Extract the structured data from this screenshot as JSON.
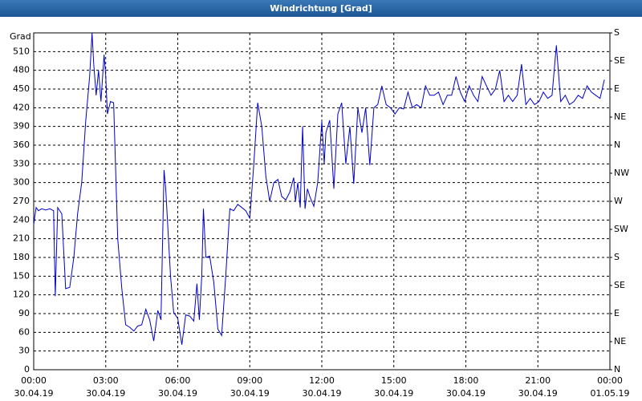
{
  "chart_data": {
    "type": "line",
    "title": "Windrichtung [Grad]",
    "y_label": "Grad",
    "x": [
      0,
      0.1,
      0.2,
      0.33,
      0.5,
      0.67,
      0.83,
      0.9,
      1.0,
      1.17,
      1.33,
      1.5,
      1.67,
      1.83,
      2.0,
      2.17,
      2.33,
      2.43,
      2.5,
      2.6,
      2.7,
      2.8,
      2.93,
      3.0,
      3.07,
      3.2,
      3.33,
      3.5,
      3.67,
      3.83,
      4.0,
      4.17,
      4.33,
      4.5,
      4.67,
      4.83,
      5.0,
      5.17,
      5.3,
      5.43,
      5.5,
      5.6,
      5.7,
      5.83,
      6.0,
      6.17,
      6.33,
      6.5,
      6.67,
      6.8,
      6.9,
      7.0,
      7.07,
      7.17,
      7.33,
      7.5,
      7.67,
      7.83,
      8.0,
      8.17,
      8.33,
      8.5,
      8.67,
      8.83,
      9.0,
      9.17,
      9.33,
      9.5,
      9.67,
      9.83,
      10.0,
      10.17,
      10.33,
      10.5,
      10.67,
      10.83,
      10.9,
      11.0,
      11.1,
      11.2,
      11.3,
      11.4,
      11.5,
      11.67,
      11.83,
      12.0,
      12.1,
      12.17,
      12.33,
      12.5,
      12.67,
      12.83,
      13.0,
      13.17,
      13.33,
      13.5,
      13.67,
      13.83,
      14.0,
      14.17,
      14.33,
      14.5,
      14.68,
      14.86,
      15.05,
      15.23,
      15.41,
      15.59,
      15.77,
      15.95,
      16.14,
      16.32,
      16.5,
      16.68,
      16.86,
      17.05,
      17.23,
      17.41,
      17.59,
      17.77,
      17.95,
      18.14,
      18.32,
      18.5,
      18.68,
      18.86,
      19.05,
      19.23,
      19.41,
      19.59,
      19.77,
      19.95,
      20.14,
      20.32,
      20.5,
      20.68,
      20.86,
      21.05,
      21.23,
      21.41,
      21.59,
      21.77,
      21.95,
      22.14,
      22.32,
      22.5,
      22.68,
      22.86,
      23.05,
      23.23,
      23.41,
      23.59,
      23.77
    ],
    "series": [
      {
        "name": "Windrichtung",
        "color": "#0000cc",
        "values": [
          233,
          260,
          255,
          258,
          256,
          258,
          255,
          118,
          260,
          250,
          130,
          132,
          180,
          250,
          300,
          400,
          470,
          540,
          490,
          440,
          480,
          430,
          505,
          470,
          410,
          430,
          428,
          210,
          130,
          72,
          68,
          62,
          70,
          72,
          97,
          80,
          46,
          95,
          80,
          320,
          290,
          220,
          150,
          92,
          82,
          40,
          88,
          86,
          78,
          138,
          80,
          150,
          258,
          180,
          182,
          140,
          65,
          55,
          150,
          258,
          255,
          265,
          260,
          255,
          243,
          330,
          428,
          390,
          310,
          270,
          300,
          305,
          278,
          272,
          285,
          308,
          270,
          300,
          260,
          390,
          258,
          290,
          278,
          262,
          300,
          398,
          330,
          380,
          400,
          290,
          410,
          428,
          330,
          390,
          298,
          420,
          380,
          420,
          328,
          420,
          425,
          455,
          425,
          420,
          410,
          420,
          418,
          445,
          420,
          425,
          420,
          455,
          440,
          440,
          445,
          425,
          440,
          440,
          470,
          445,
          430,
          455,
          440,
          430,
          470,
          455,
          440,
          450,
          480,
          430,
          440,
          430,
          440,
          490,
          425,
          435,
          425,
          430,
          445,
          435,
          440,
          520,
          430,
          440,
          425,
          430,
          440,
          435,
          455,
          445,
          440,
          435,
          465
        ]
      }
    ],
    "xlim": [
      0,
      24
    ],
    "xticks": [
      {
        "value": 0,
        "label": "00:00",
        "date": "30.04.19"
      },
      {
        "value": 3,
        "label": "03:00",
        "date": "30.04.19"
      },
      {
        "value": 6,
        "label": "06:00",
        "date": "30.04.19"
      },
      {
        "value": 9,
        "label": "09:00",
        "date": "30.04.19"
      },
      {
        "value": 12,
        "label": "12:00",
        "date": "30.04.19"
      },
      {
        "value": 15,
        "label": "15:00",
        "date": "30.04.19"
      },
      {
        "value": 18,
        "label": "18:00",
        "date": "30.04.19"
      },
      {
        "value": 21,
        "label": "21:00",
        "date": "30.04.19"
      },
      {
        "value": 24,
        "label": "00:00",
        "date": "01.05.19"
      }
    ],
    "ylim": [
      0,
      540
    ],
    "yticks": [
      0,
      30,
      60,
      90,
      120,
      150,
      180,
      210,
      240,
      270,
      300,
      330,
      360,
      390,
      420,
      450,
      480,
      510
    ],
    "y2lim": [
      0,
      540
    ],
    "y2ticks": [
      {
        "value": 0,
        "label": "N"
      },
      {
        "value": 45,
        "label": "NE"
      },
      {
        "value": 90,
        "label": "E"
      },
      {
        "value": 135,
        "label": "SE"
      },
      {
        "value": 180,
        "label": "S"
      },
      {
        "value": 225,
        "label": "SW"
      },
      {
        "value": 270,
        "label": "W"
      },
      {
        "value": 315,
        "label": "NW"
      },
      {
        "value": 360,
        "label": "N"
      },
      {
        "value": 405,
        "label": "NE"
      },
      {
        "value": 450,
        "label": "E"
      },
      {
        "value": 495,
        "label": "SE"
      },
      {
        "value": 540,
        "label": "S"
      }
    ],
    "grid": true
  }
}
